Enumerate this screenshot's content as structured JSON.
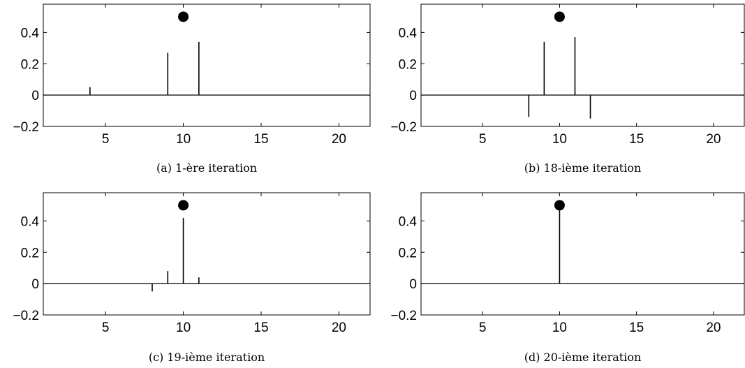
{
  "chart_data": [
    {
      "type": "stem",
      "caption": "(a) 1-ère iteration",
      "xlim": [
        1,
        22
      ],
      "ylim": [
        -0.2,
        0.58
      ],
      "xticks": [
        5,
        10,
        15,
        20
      ],
      "yticks": [
        -0.2,
        0,
        0.2,
        0.4
      ],
      "xtick_labels": [
        "5",
        "10",
        "15",
        "20"
      ],
      "ytick_labels": [
        "−0.2",
        "0",
        "0.2",
        "0.4"
      ],
      "stems": [
        {
          "x": 4,
          "y": 0.05
        },
        {
          "x": 9,
          "y": 0.27
        },
        {
          "x": 11,
          "y": 0.34
        }
      ],
      "marker": {
        "x": 10,
        "y": 0.5
      }
    },
    {
      "type": "stem",
      "caption": "(b) 18-ième iteration",
      "xlim": [
        1,
        22
      ],
      "ylim": [
        -0.2,
        0.58
      ],
      "xticks": [
        5,
        10,
        15,
        20
      ],
      "yticks": [
        -0.2,
        0,
        0.2,
        0.4
      ],
      "xtick_labels": [
        "5",
        "10",
        "15",
        "20"
      ],
      "ytick_labels": [
        "−0.2",
        "0",
        "0.2",
        "0.4"
      ],
      "stems": [
        {
          "x": 8,
          "y": -0.14
        },
        {
          "x": 9,
          "y": 0.34
        },
        {
          "x": 11,
          "y": 0.37
        },
        {
          "x": 12,
          "y": -0.15
        }
      ],
      "marker": {
        "x": 10,
        "y": 0.5
      }
    },
    {
      "type": "stem",
      "caption": "(c) 19-ième iteration",
      "xlim": [
        1,
        22
      ],
      "ylim": [
        -0.2,
        0.58
      ],
      "xticks": [
        5,
        10,
        15,
        20
      ],
      "yticks": [
        -0.2,
        0,
        0.2,
        0.4
      ],
      "xtick_labels": [
        "5",
        "10",
        "15",
        "20"
      ],
      "ytick_labels": [
        "−0.2",
        "0",
        "0.2",
        "0.4"
      ],
      "stems": [
        {
          "x": 8,
          "y": -0.05
        },
        {
          "x": 9,
          "y": 0.08
        },
        {
          "x": 10,
          "y": 0.42
        },
        {
          "x": 11,
          "y": 0.04
        }
      ],
      "marker": {
        "x": 10,
        "y": 0.5
      }
    },
    {
      "type": "stem",
      "caption": "(d) 20-ième iteration",
      "xlim": [
        1,
        22
      ],
      "ylim": [
        -0.2,
        0.58
      ],
      "xticks": [
        5,
        10,
        15,
        20
      ],
      "yticks": [
        -0.2,
        0,
        0.2,
        0.4
      ],
      "xtick_labels": [
        "5",
        "10",
        "15",
        "20"
      ],
      "ytick_labels": [
        "−0.2",
        "0",
        "0.2",
        "0.4"
      ],
      "stems": [
        {
          "x": 10,
          "y": 0.5
        }
      ],
      "marker": {
        "x": 10,
        "y": 0.5
      }
    }
  ]
}
